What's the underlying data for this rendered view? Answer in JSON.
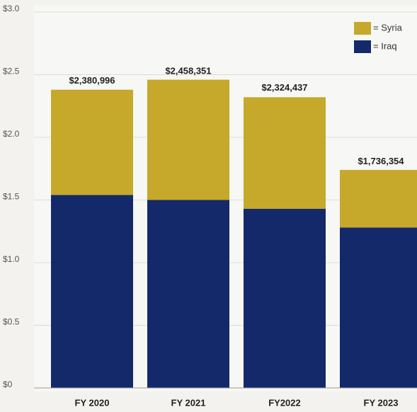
{
  "chart_data": {
    "type": "stacked-bar",
    "categories": [
      "FY 2020",
      "FY 2021",
      "FY2022",
      "FY 2023"
    ],
    "series": [
      {
        "name": "= Iraq",
        "color": "#13296a",
        "values": [
          1.54,
          1.5,
          1.43,
          1.28
        ]
      },
      {
        "name": "= Syria",
        "color": "#c6a82a",
        "values": [
          0.84,
          0.96,
          0.89,
          0.46
        ]
      }
    ],
    "totals": {
      "values": [
        2.380996,
        2.458351,
        2.324437,
        1.736354
      ],
      "value_labels": [
        "$2,380,996",
        "$2,458,351",
        "$2,324,437",
        "$1,736,354"
      ]
    },
    "ylim": [
      0,
      3
    ],
    "yticks": [
      {
        "value": 0,
        "label": "$0"
      },
      {
        "value": 0.5,
        "label": "$0.5"
      },
      {
        "value": 1,
        "label": "$1.0"
      },
      {
        "value": 1.5,
        "label": "$1.5"
      },
      {
        "value": 2,
        "label": "$2.0"
      },
      {
        "value": 2.5,
        "label": "$2.5"
      },
      {
        "value": 3,
        "label": "$3.0"
      }
    ],
    "grid": true
  }
}
